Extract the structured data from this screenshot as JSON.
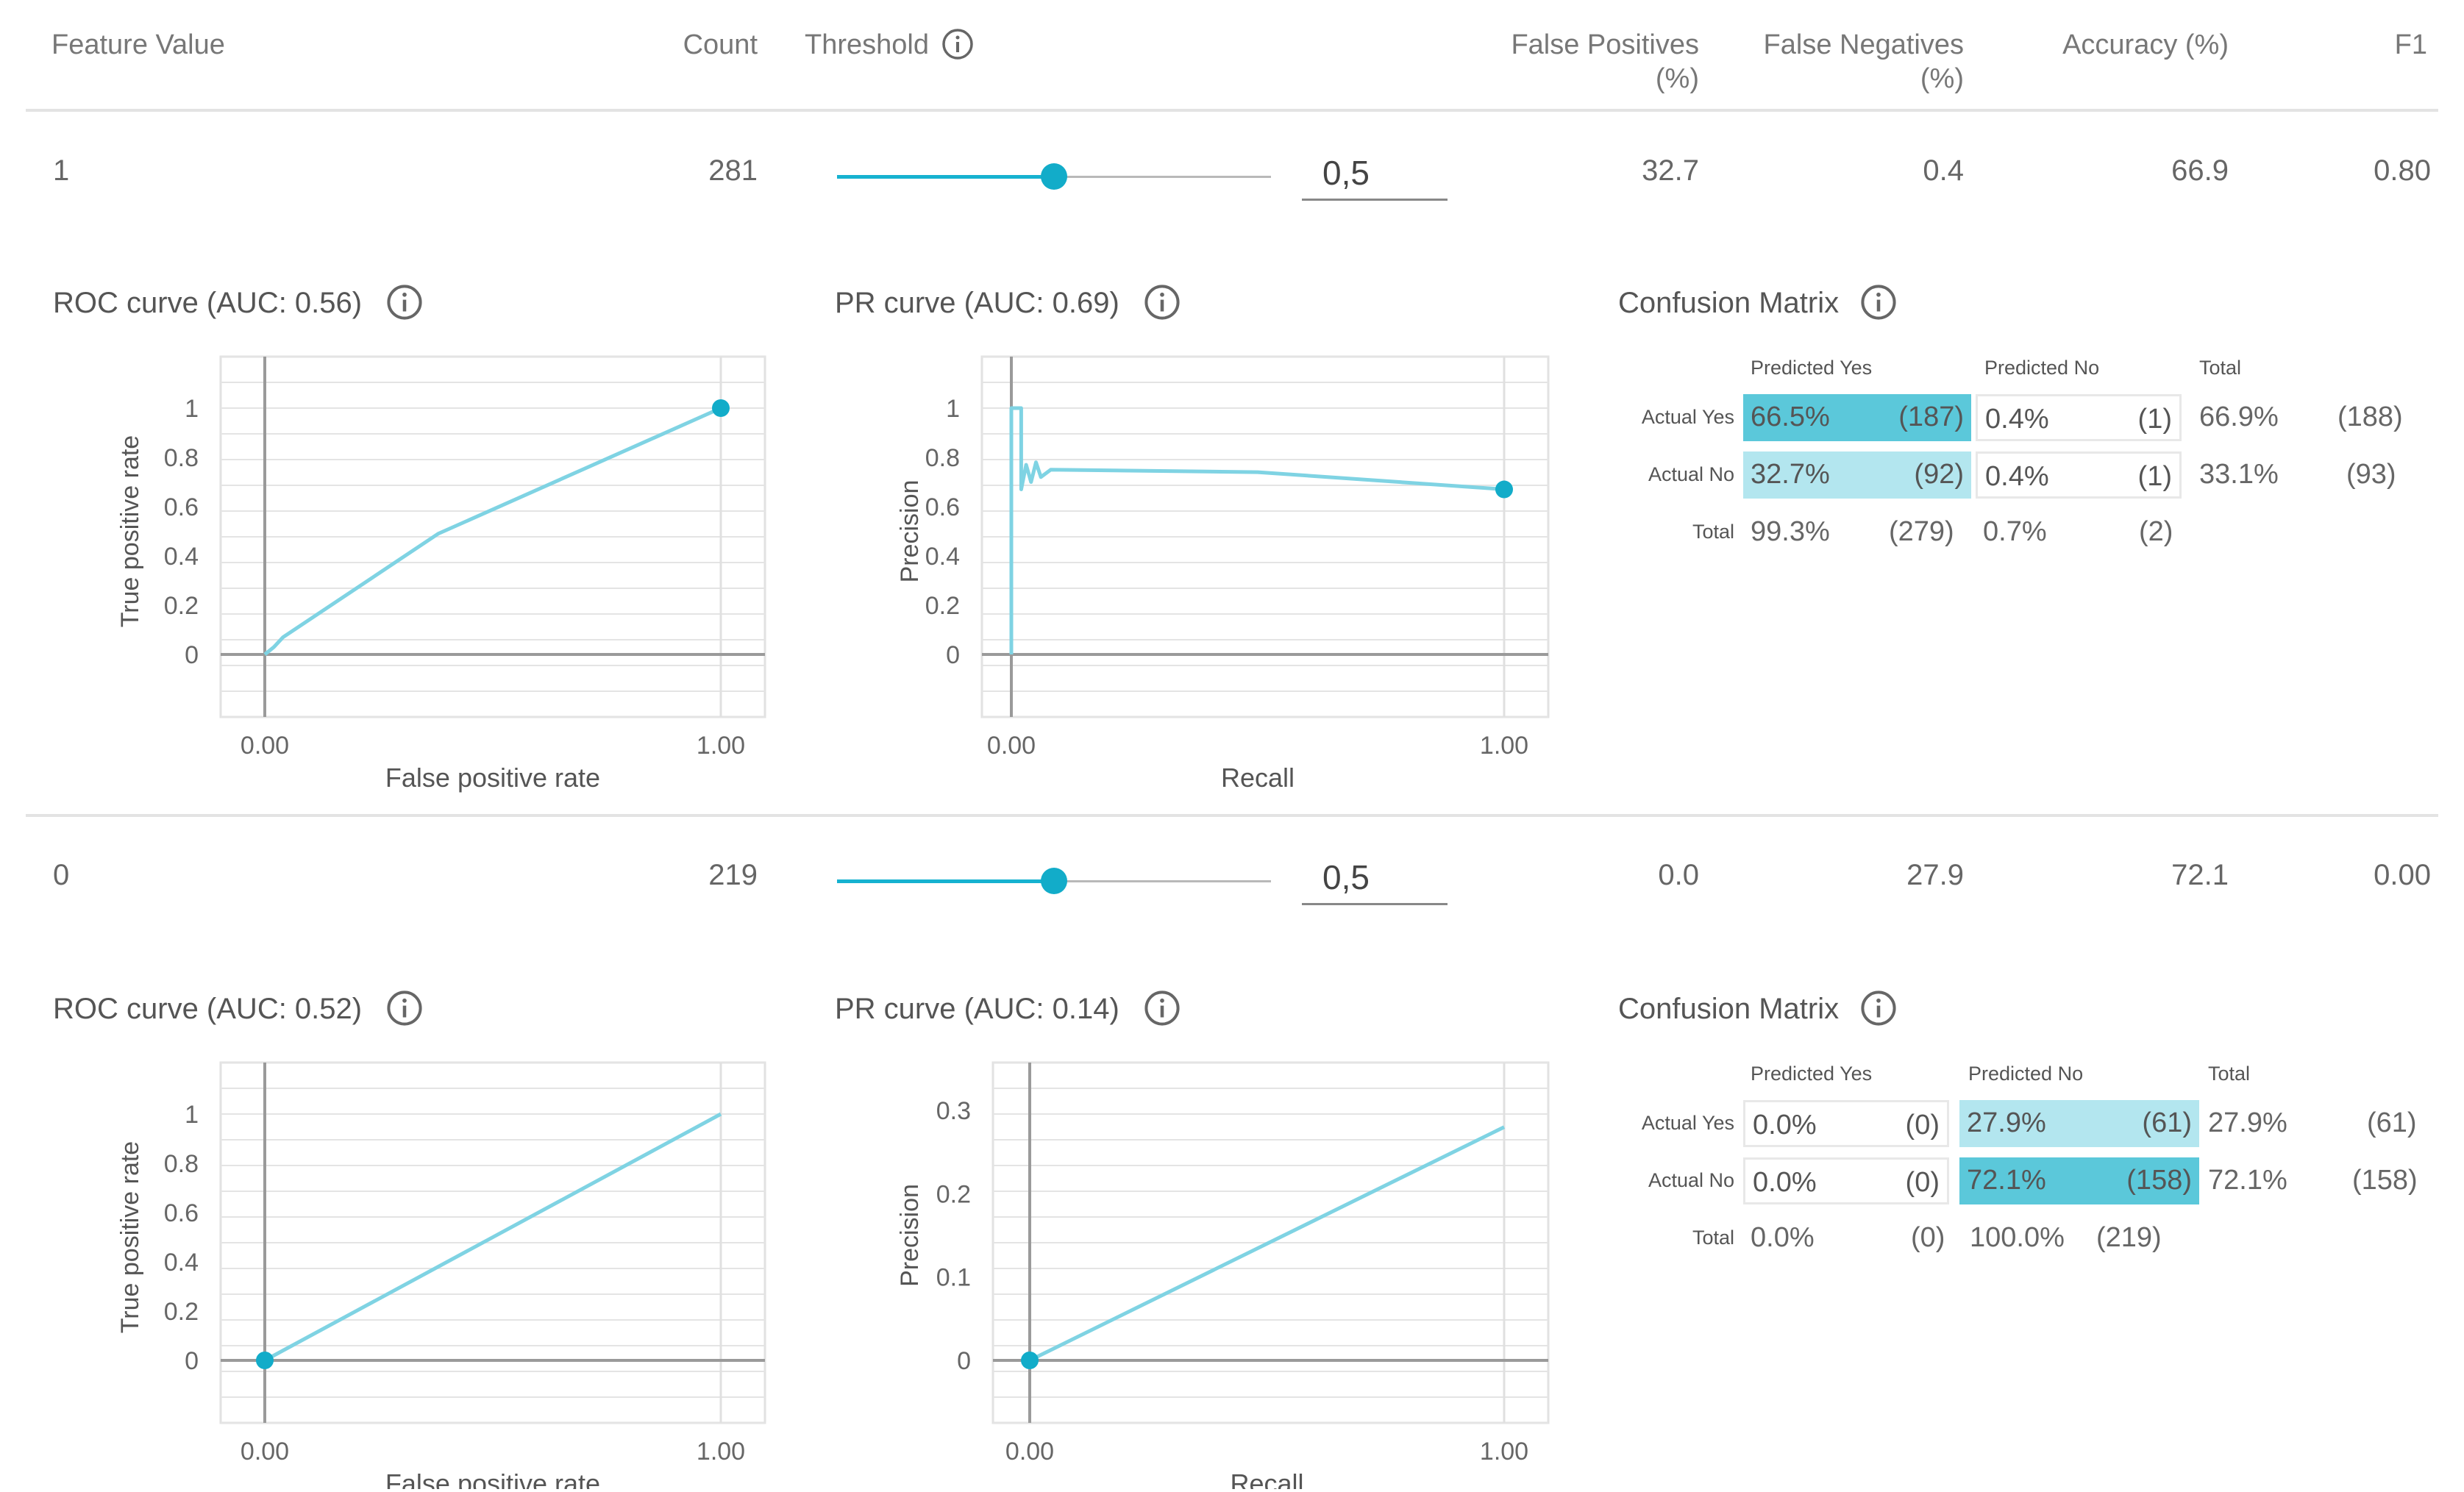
{
  "header": {
    "feature_value": "Feature Value",
    "count": "Count",
    "threshold": "Threshold",
    "false_positives": [
      "False Positives",
      "(%)"
    ],
    "false_negatives": [
      "False Negatives",
      "(%)"
    ],
    "accuracy": "Accuracy (%)",
    "f1": "F1"
  },
  "colors": {
    "accent": "#12acc9",
    "curve": "#7fd3e3",
    "cm_dark": "#5bc8da",
    "cm_light": "#b3e6ef"
  },
  "rows": [
    {
      "feature_value": "1",
      "count": "281",
      "slider_fraction": 0.5,
      "threshold": "0,5",
      "false_positives": "32.7",
      "false_negatives": "0.4",
      "accuracy": "66.9",
      "f1": "0.80",
      "roc": {
        "title": "ROC curve (AUC: 0.56)",
        "xlabel": "False positive rate",
        "ylabel": "True positive rate",
        "x_ticks": [
          "0.00",
          "1.00"
        ],
        "y_ticks": [
          "1",
          "0.8",
          "0.6",
          "0.4",
          "0.2",
          "0"
        ]
      },
      "pr": {
        "title": "PR curve (AUC: 0.69)",
        "xlabel": "Recall",
        "ylabel": "Precision",
        "x_ticks": [
          "0.00",
          "1.00"
        ],
        "y_ticks": [
          "1",
          "0.8",
          "0.6",
          "0.4",
          "0.2",
          "0"
        ]
      },
      "cm": {
        "title": "Confusion Matrix",
        "col_headers": [
          "Predicted Yes",
          "Predicted No",
          "Total"
        ],
        "rows": [
          {
            "label": "Actual Yes",
            "yes_pct": "66.5%",
            "yes_cnt": "(187)",
            "no_pct": "0.4%",
            "no_cnt": "(1)",
            "tot_pct": "66.9%",
            "tot_cnt": "(188)"
          },
          {
            "label": "Actual No",
            "yes_pct": "32.7%",
            "yes_cnt": "(92)",
            "no_pct": "0.4%",
            "no_cnt": "(1)",
            "tot_pct": "33.1%",
            "tot_cnt": "(93)"
          }
        ],
        "total": {
          "label": "Total",
          "yes_pct": "99.3%",
          "yes_cnt": "(279)",
          "no_pct": "0.7%",
          "no_cnt": "(2)"
        }
      }
    },
    {
      "feature_value": "0",
      "count": "219",
      "slider_fraction": 0.5,
      "threshold": "0,5",
      "false_positives": "0.0",
      "false_negatives": "27.9",
      "accuracy": "72.1",
      "f1": "0.00",
      "roc": {
        "title": "ROC curve (AUC: 0.52)",
        "xlabel": "False positive rate",
        "ylabel": "True positive rate",
        "x_ticks": [
          "0.00",
          "1.00"
        ],
        "y_ticks": [
          "1",
          "0.8",
          "0.6",
          "0.4",
          "0.2",
          "0"
        ]
      },
      "pr": {
        "title": "PR curve (AUC: 0.14)",
        "xlabel": "Recall",
        "ylabel": "Precision",
        "x_ticks": [
          "0.00",
          "1.00"
        ],
        "y_ticks": [
          "0.3",
          "0.2",
          "0.1",
          "0"
        ]
      },
      "cm": {
        "title": "Confusion Matrix",
        "col_headers": [
          "Predicted Yes",
          "Predicted No",
          "Total"
        ],
        "rows": [
          {
            "label": "Actual Yes",
            "yes_pct": "0.0%",
            "yes_cnt": "(0)",
            "no_pct": "27.9%",
            "no_cnt": "(61)",
            "tot_pct": "27.9%",
            "tot_cnt": "(61)"
          },
          {
            "label": "Actual No",
            "yes_pct": "0.0%",
            "yes_cnt": "(0)",
            "no_pct": "72.1%",
            "no_cnt": "(158)",
            "tot_pct": "72.1%",
            "tot_cnt": "(158)"
          }
        ],
        "total": {
          "label": "Total",
          "yes_pct": "0.0%",
          "yes_cnt": "(0)",
          "no_pct": "100.0%",
          "no_cnt": "(219)"
        }
      }
    }
  ],
  "chart_data": [
    {
      "type": "line",
      "title": "ROC curve (AUC: 0.56)",
      "xlabel": "False positive rate",
      "ylabel": "True positive rate",
      "xlim": [
        0,
        1
      ],
      "ylim": [
        0,
        1
      ],
      "series": [
        {
          "name": "ROC",
          "x": [
            0,
            0.02,
            0.04,
            0.38,
            1.0
          ],
          "y": [
            0,
            0.03,
            0.07,
            0.49,
            1.0
          ]
        }
      ],
      "marker": {
        "x": 1.0,
        "y": 1.0
      }
    },
    {
      "type": "line",
      "title": "PR curve (AUC: 0.69)",
      "xlabel": "Recall",
      "ylabel": "Precision",
      "xlim": [
        0,
        1
      ],
      "ylim": [
        0,
        1
      ],
      "series": [
        {
          "name": "PR",
          "x": [
            0,
            0,
            0.02,
            0.02,
            0.03,
            0.04,
            0.05,
            0.06,
            0.08,
            0.5,
            1.0
          ],
          "y": [
            0,
            1.0,
            1.0,
            0.67,
            0.77,
            0.7,
            0.78,
            0.72,
            0.75,
            0.74,
            0.67
          ]
        }
      ],
      "marker": {
        "x": 1.0,
        "y": 0.67
      }
    },
    {
      "type": "line",
      "title": "ROC curve (AUC: 0.52)",
      "xlabel": "False positive rate",
      "ylabel": "True positive rate",
      "xlim": [
        0,
        1
      ],
      "ylim": [
        0,
        1
      ],
      "series": [
        {
          "name": "ROC",
          "x": [
            0,
            1.0
          ],
          "y": [
            0,
            1.0
          ]
        }
      ],
      "marker": {
        "x": 0,
        "y": 0
      }
    },
    {
      "type": "line",
      "title": "PR curve (AUC: 0.14)",
      "xlabel": "Recall",
      "ylabel": "Precision",
      "xlim": [
        0,
        1
      ],
      "ylim": [
        0,
        0.3
      ],
      "series": [
        {
          "name": "PR",
          "x": [
            0,
            1.0
          ],
          "y": [
            0,
            0.28
          ]
        }
      ],
      "marker": {
        "x": 0,
        "y": 0
      }
    }
  ]
}
